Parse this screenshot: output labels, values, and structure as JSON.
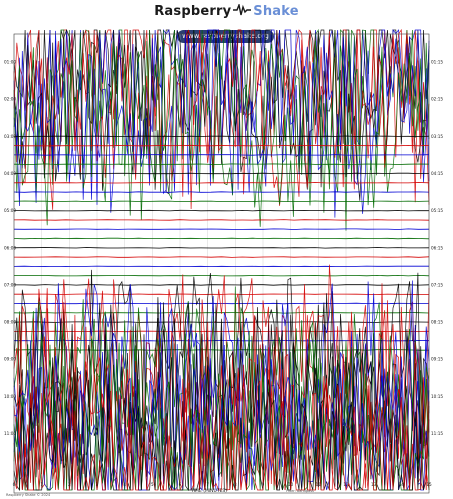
{
  "header": {
    "brand_main": "Raspberry",
    "brand_accent": "Shake",
    "url": "www.raspberryshake.org"
  },
  "chart_data": {
    "type": "helicorder",
    "left_time_labels": [
      "01:00",
      "02:00",
      "03:00",
      "04:00",
      "05:00",
      "06:00",
      "07:00",
      "08:00",
      "09:00",
      "10:00",
      "11:00"
    ],
    "right_time_labels": [
      "01:15",
      "02:15",
      "03:15",
      "04:15",
      "05:15",
      "06:15",
      "07:15",
      "08:15",
      "09:15",
      "10:15",
      "11:15"
    ],
    "x_tick_labels": [
      "0",
      "1",
      "2",
      "3",
      "4",
      "5",
      "6",
      "7",
      "8",
      "9",
      "10",
      "11",
      "12",
      "13",
      "14",
      "15"
    ],
    "x_range_minutes": [
      0,
      15
    ],
    "trace_count": 46,
    "trace_colors": [
      "#000000",
      "#d40000",
      "#0000d4",
      "#006a00"
    ],
    "active_segments": [
      {
        "from_trace": 0,
        "to_trace": 7,
        "activity": "high"
      },
      {
        "from_trace": 8,
        "to_trace": 31,
        "activity": "quiet"
      },
      {
        "from_trace": 32,
        "to_trace": 45,
        "activity": "high"
      }
    ],
    "xlabel": "TIME (MINUTES)",
    "footer_left": "Raspberry Shake © 2024",
    "footer_right": "Filter: bandpass",
    "grid": true
  }
}
